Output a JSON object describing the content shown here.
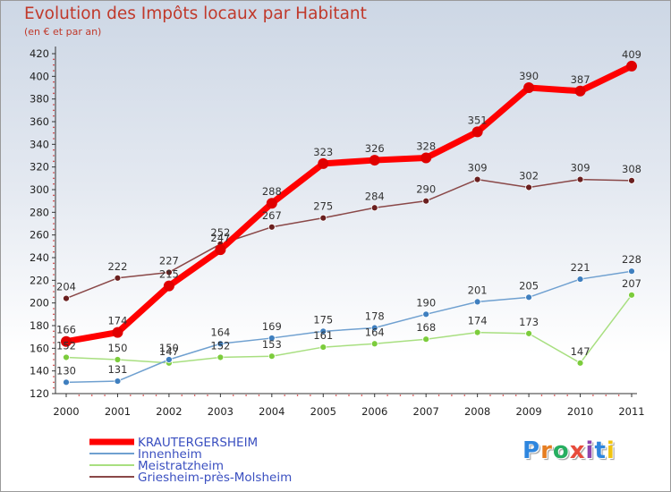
{
  "title": "Evolution des Impôts locaux par Habitant",
  "subtitle": "(en € et par an)",
  "logo": {
    "text": "Proxiti",
    "letters": [
      {
        "ch": "P",
        "color": "#2e86de"
      },
      {
        "ch": "r",
        "color": "#e67e22"
      },
      {
        "ch": "o",
        "color": "#27ae60"
      },
      {
        "ch": "x",
        "color": "#e74c3c"
      },
      {
        "ch": "i",
        "color": "#8e44ad"
      },
      {
        "ch": "t",
        "color": "#2e86de"
      },
      {
        "ch": "i",
        "color": "#f1c40f"
      }
    ]
  },
  "chart_data": {
    "type": "line",
    "title": "Evolution des Impôts locaux par Habitant",
    "subtitle": "(en € et par an)",
    "xlabel": "",
    "ylabel": "",
    "x": [
      "2000",
      "2001",
      "2002",
      "2003",
      "2004",
      "2005",
      "2006",
      "2007",
      "2008",
      "2009",
      "2010",
      "2011"
    ],
    "ylim": [
      120,
      420
    ],
    "yticks": [
      120,
      140,
      160,
      180,
      200,
      220,
      240,
      260,
      280,
      300,
      320,
      340,
      360,
      380,
      400,
      420
    ],
    "grid": false,
    "legend": "bottom-left",
    "series": [
      {
        "name": "KRAUTERGERSHEIM",
        "color": "#ff0000",
        "point_color": "#e00000",
        "width": 7,
        "r": 6,
        "values": [
          166,
          174,
          215,
          247,
          288,
          323,
          326,
          328,
          351,
          390,
          387,
          409
        ]
      },
      {
        "name": "Innenheim",
        "color": "#6fa0d0",
        "point_color": "#3f7fbf",
        "width": 1.5,
        "r": 3.5,
        "values": [
          130,
          131,
          150,
          164,
          169,
          175,
          178,
          190,
          201,
          205,
          221,
          228
        ]
      },
      {
        "name": "Meistratzheim",
        "color": "#a8df80",
        "point_color": "#7ccc3c",
        "width": 1.5,
        "r": 3.5,
        "values": [
          152,
          150,
          147,
          152,
          153,
          161,
          164,
          168,
          174,
          173,
          147,
          207
        ]
      },
      {
        "name": "Griesheim-près-Molsheim",
        "color": "#8a4848",
        "point_color": "#6a1f1f",
        "width": 1.5,
        "r": 3.5,
        "values": [
          204,
          222,
          227,
          252,
          267,
          275,
          284,
          290,
          309,
          302,
          309,
          308
        ]
      }
    ]
  }
}
